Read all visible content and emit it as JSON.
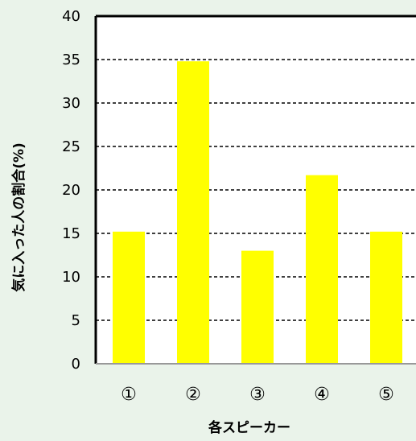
{
  "chart_data": {
    "type": "bar",
    "categories": [
      "①",
      "②",
      "③",
      "④",
      "⑤"
    ],
    "values": [
      15.2,
      34.8,
      13.0,
      21.7,
      15.2
    ],
    "xlabel": "各スピーカー",
    "ylabel": "気に入った人の割合(%)",
    "ylim": [
      0,
      40
    ],
    "yticks": [
      0,
      5,
      10,
      15,
      20,
      25,
      30,
      35,
      40
    ],
    "grid": true,
    "grid_style": "dashed",
    "legend": "none"
  },
  "colors": {
    "background": "#eaf3ea",
    "plot_area": "#ffffff",
    "bar": "#ffff00",
    "axis": "#000000"
  }
}
